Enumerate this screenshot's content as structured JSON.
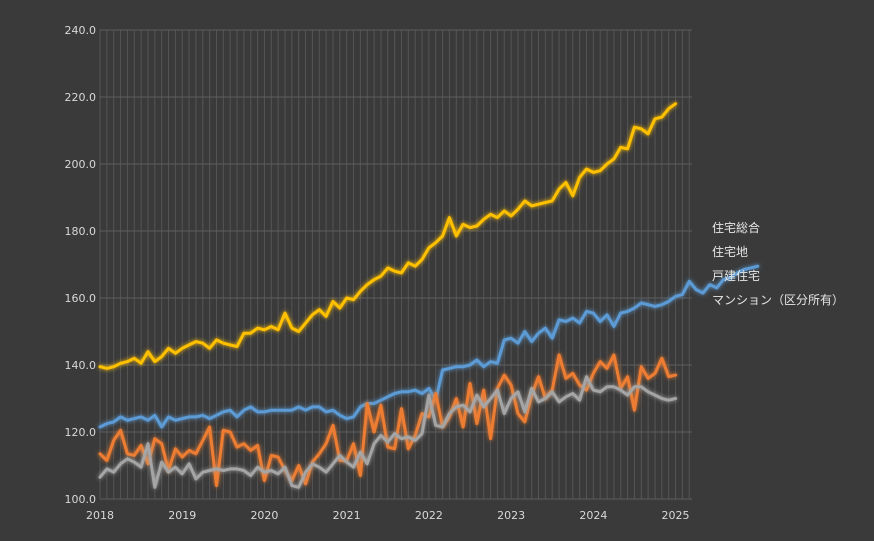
{
  "chart_data": {
    "type": "line",
    "title": "",
    "xlabel": "",
    "ylabel": "",
    "ylim": [
      100,
      240
    ],
    "yticks": [
      "100.0",
      "120.0",
      "140.0",
      "160.0",
      "180.0",
      "200.0",
      "220.0",
      "240.0"
    ],
    "xlim": [
      2018,
      2025.2
    ],
    "xticks": [
      "2018",
      "2019",
      "2020",
      "2021",
      "2022",
      "2023",
      "2024",
      "2025"
    ],
    "grid": true,
    "legend_position": "right",
    "x_start": "2018-01",
    "series": [
      {
        "name": "住宅総合",
        "color": "#5b9bd5",
        "values": [
          121.5,
          122.5,
          123.0,
          124.5,
          123.5,
          124.0,
          124.5,
          123.5,
          125.0,
          121.5,
          124.5,
          123.5,
          124.0,
          124.5,
          124.5,
          125.0,
          124.0,
          125.0,
          126.0,
          126.5,
          124.5,
          126.5,
          127.5,
          126.0,
          126.0,
          126.5,
          126.5,
          126.5,
          126.5,
          127.5,
          126.5,
          127.5,
          127.5,
          126.0,
          126.5,
          125.0,
          124.0,
          124.5,
          127.5,
          128.5,
          128.5,
          129.5,
          130.5,
          131.5,
          132.0,
          132.0,
          132.5,
          131.5,
          133.0,
          129.5,
          138.5,
          139.0,
          139.5,
          139.5,
          140.0,
          141.5,
          139.5,
          141.0,
          140.5,
          147.5,
          148.0,
          146.5,
          150.0,
          147.0,
          149.5,
          151.0,
          148.0,
          153.5,
          153.0,
          154.0,
          152.5,
          156.0,
          155.5,
          153.0,
          155.0,
          151.5,
          155.5,
          156.0,
          157.0,
          158.5,
          158.0,
          157.5,
          158.0,
          159.0,
          160.5,
          161.0,
          165.0,
          162.5,
          161.5,
          164.0,
          163.0,
          165.5,
          166.0,
          167.5,
          168.5,
          169.0,
          169.5
        ]
      },
      {
        "name": "住宅地",
        "color": "#ed7d31",
        "values": [
          113.5,
          111.5,
          117.5,
          120.5,
          113.5,
          113.0,
          116.0,
          110.5,
          118.0,
          116.5,
          108.5,
          115.0,
          112.5,
          114.5,
          113.5,
          117.5,
          121.5,
          104.0,
          120.5,
          120.0,
          115.5,
          116.5,
          114.5,
          116.0,
          105.5,
          113.0,
          112.5,
          108.5,
          105.5,
          110.0,
          104.5,
          111.0,
          113.5,
          116.5,
          122.0,
          111.5,
          111.5,
          116.5,
          107.0,
          128.5,
          120.0,
          128.0,
          115.5,
          115.0,
          127.0,
          115.0,
          119.0,
          125.5,
          124.5,
          131.5,
          121.5,
          124.5,
          130.0,
          121.5,
          134.5,
          122.5,
          132.5,
          118.0,
          133.0,
          137.0,
          134.0,
          125.5,
          123.0,
          131.0,
          136.5,
          130.0,
          132.5,
          143.0,
          136.0,
          137.5,
          134.0,
          132.5,
          137.5,
          141.0,
          139.0,
          143.0,
          133.0,
          136.5,
          126.5,
          139.5,
          136.0,
          137.5,
          142.0,
          136.5,
          137.0
        ]
      },
      {
        "name": "戸建住宅",
        "color": "#a5a5a5",
        "values": [
          106.5,
          109.0,
          108.0,
          110.5,
          112.0,
          111.0,
          109.5,
          116.5,
          103.5,
          111.0,
          108.0,
          109.5,
          107.5,
          110.5,
          106.0,
          108.0,
          108.5,
          109.0,
          108.5,
          109.0,
          109.0,
          108.5,
          107.0,
          109.5,
          108.0,
          108.5,
          107.5,
          109.5,
          104.0,
          103.5,
          108.0,
          110.5,
          109.5,
          108.0,
          110.5,
          113.0,
          111.0,
          109.5,
          114.0,
          110.5,
          116.5,
          119.0,
          117.0,
          119.5,
          118.0,
          118.5,
          117.5,
          119.5,
          131.0,
          122.0,
          121.5,
          125.5,
          127.5,
          128.0,
          126.0,
          131.0,
          127.5,
          130.0,
          132.5,
          125.5,
          130.0,
          132.0,
          126.0,
          133.0,
          129.0,
          130.0,
          132.0,
          129.0,
          130.5,
          131.5,
          129.5,
          136.5,
          132.5,
          132.0,
          133.5,
          133.5,
          132.5,
          131.0,
          133.5,
          133.5,
          132.0,
          131.0,
          130.0,
          129.5,
          130.0
        ]
      },
      {
        "name": "マンション（区分所有）",
        "color": "#ffc000",
        "values": [
          139.5,
          139.0,
          139.5,
          140.5,
          141.0,
          142.0,
          140.5,
          144.0,
          141.0,
          142.5,
          145.0,
          143.5,
          145.0,
          146.0,
          147.0,
          146.5,
          145.0,
          147.5,
          146.5,
          146.0,
          145.5,
          149.5,
          149.5,
          151.0,
          150.5,
          151.5,
          150.5,
          155.5,
          151.0,
          150.0,
          152.5,
          155.0,
          156.5,
          154.5,
          159.0,
          157.0,
          160.0,
          159.5,
          162.0,
          164.0,
          165.5,
          166.5,
          169.0,
          168.0,
          167.5,
          170.5,
          169.5,
          171.5,
          175.0,
          176.5,
          178.5,
          184.0,
          178.5,
          182.0,
          181.0,
          181.5,
          183.5,
          185.0,
          184.0,
          186.0,
          184.5,
          186.5,
          189.0,
          187.5,
          188.0,
          188.5,
          189.0,
          192.5,
          194.5,
          190.5,
          196.0,
          198.5,
          197.5,
          198.0,
          200.0,
          201.5,
          205.0,
          204.5,
          211.0,
          210.5,
          209.0,
          213.5,
          214.0,
          216.5,
          218.0
        ]
      }
    ]
  }
}
